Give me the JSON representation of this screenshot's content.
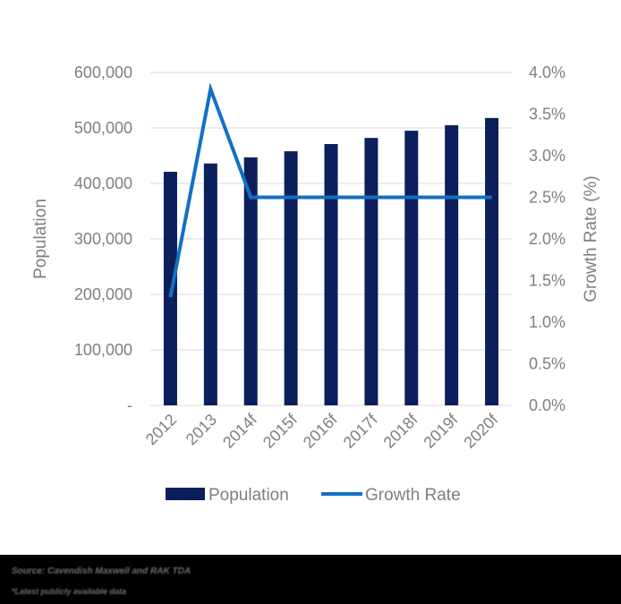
{
  "chart_data": {
    "type": "bar+line",
    "title": "",
    "categories": [
      "2012",
      "2013",
      "2014f",
      "2015f",
      "2016f",
      "2017f",
      "2018f",
      "2019f",
      "2020f"
    ],
    "series": [
      {
        "name": "Population",
        "type": "bar",
        "axis": "left",
        "color": "#0c1f5c",
        "values": [
          421000,
          436000,
          447000,
          458000,
          471000,
          482000,
          495000,
          505000,
          518000
        ]
      },
      {
        "name": "Growth Rate",
        "type": "line",
        "axis": "right",
        "color": "#1170c4",
        "values": [
          1.3,
          3.8,
          2.5,
          2.5,
          2.5,
          2.5,
          2.5,
          2.5,
          2.5
        ]
      }
    ],
    "ylabel": "Population",
    "y2label": "Growth Rate (%)",
    "xlabel": "",
    "ylim": [
      0,
      600000
    ],
    "y2lim": [
      0,
      4.0
    ],
    "yticks": [
      "-",
      "100,000",
      "200,000",
      "300,000",
      "400,000",
      "500,000",
      "600,000"
    ],
    "y2ticks": [
      "0.0%",
      "0.5%",
      "1.0%",
      "1.5%",
      "2.0%",
      "2.5%",
      "3.0%",
      "3.5%",
      "4.0%"
    ],
    "grid": true,
    "legend_position": "bottom"
  },
  "legend": {
    "population": "Population",
    "growth_rate": "Growth Rate"
  },
  "footer": {
    "source": "Source: Cavendish Maxwell and RAK TDA",
    "note": "*Latest publicly available data"
  }
}
